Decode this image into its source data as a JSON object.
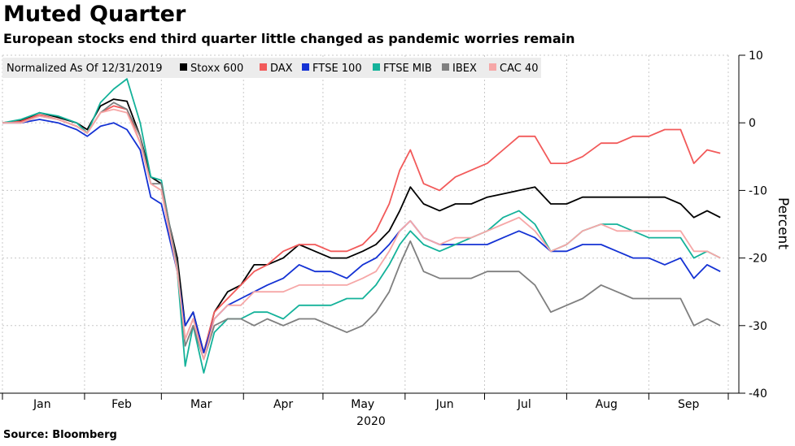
{
  "chart_data": {
    "type": "line",
    "title": "Muted Quarter",
    "subtitle": "European stocks end third quarter little changed as pandemic worries remain",
    "source": "Source: Bloomberg",
    "ylabel": "Percent",
    "xlabel": "2020",
    "legend_title": "Normalized As Of 12/31/2019",
    "ylim": [
      -40,
      10
    ],
    "yticks": [
      10,
      0,
      -10,
      -20,
      -30,
      -40
    ],
    "xlim": [
      0,
      274
    ],
    "month_ticks": [
      0,
      31,
      60,
      91,
      121,
      152,
      182,
      213,
      244,
      274
    ],
    "month_labels": [
      {
        "label": "Jan",
        "x": 15
      },
      {
        "label": "Feb",
        "x": 45
      },
      {
        "label": "Mar",
        "x": 75
      },
      {
        "label": "Apr",
        "x": 106
      },
      {
        "label": "May",
        "x": 136
      },
      {
        "label": "Jun",
        "x": 167
      },
      {
        "label": "Jul",
        "x": 197
      },
      {
        "label": "Aug",
        "x": 228
      },
      {
        "label": "Sep",
        "x": 259
      }
    ],
    "grid": true,
    "series": [
      {
        "name": "Stoxx 600",
        "color": "#000000",
        "points": [
          [
            0,
            0
          ],
          [
            7,
            0.3
          ],
          [
            14,
            1.5
          ],
          [
            21,
            0.8
          ],
          [
            28,
            0
          ],
          [
            32,
            -1
          ],
          [
            37,
            2.5
          ],
          [
            42,
            3.5
          ],
          [
            47,
            3.2
          ],
          [
            52,
            -2
          ],
          [
            56,
            -8
          ],
          [
            60,
            -9
          ],
          [
            63,
            -15
          ],
          [
            66,
            -20
          ],
          [
            69,
            -30
          ],
          [
            72,
            -28
          ],
          [
            76,
            -34
          ],
          [
            80,
            -28
          ],
          [
            85,
            -25
          ],
          [
            90,
            -24
          ],
          [
            95,
            -21
          ],
          [
            100,
            -21
          ],
          [
            106,
            -20
          ],
          [
            112,
            -18
          ],
          [
            118,
            -19
          ],
          [
            124,
            -20
          ],
          [
            130,
            -20
          ],
          [
            136,
            -19
          ],
          [
            141,
            -18
          ],
          [
            146,
            -16
          ],
          [
            150,
            -13
          ],
          [
            154,
            -9.5
          ],
          [
            159,
            -12
          ],
          [
            165,
            -13
          ],
          [
            171,
            -12
          ],
          [
            177,
            -12
          ],
          [
            183,
            -11
          ],
          [
            189,
            -10.5
          ],
          [
            195,
            -10
          ],
          [
            201,
            -9.5
          ],
          [
            207,
            -12
          ],
          [
            213,
            -12
          ],
          [
            219,
            -11
          ],
          [
            226,
            -11
          ],
          [
            232,
            -11
          ],
          [
            238,
            -11
          ],
          [
            244,
            -11
          ],
          [
            250,
            -11
          ],
          [
            256,
            -12
          ],
          [
            261,
            -14
          ],
          [
            266,
            -13
          ],
          [
            271,
            -14
          ]
        ]
      },
      {
        "name": "DAX",
        "color": "#f25a5a",
        "points": [
          [
            0,
            0
          ],
          [
            7,
            0.2
          ],
          [
            14,
            1.2
          ],
          [
            21,
            0.5
          ],
          [
            28,
            -0.5
          ],
          [
            32,
            -1.5
          ],
          [
            37,
            1.5
          ],
          [
            42,
            2.5
          ],
          [
            47,
            2
          ],
          [
            52,
            -3
          ],
          [
            56,
            -9
          ],
          [
            60,
            -10
          ],
          [
            63,
            -16
          ],
          [
            66,
            -22
          ],
          [
            69,
            -32
          ],
          [
            72,
            -29
          ],
          [
            76,
            -34
          ],
          [
            80,
            -28
          ],
          [
            85,
            -26
          ],
          [
            90,
            -24
          ],
          [
            95,
            -22
          ],
          [
            100,
            -21
          ],
          [
            106,
            -19
          ],
          [
            112,
            -18
          ],
          [
            118,
            -18
          ],
          [
            124,
            -19
          ],
          [
            130,
            -19
          ],
          [
            136,
            -18
          ],
          [
            141,
            -16
          ],
          [
            146,
            -12
          ],
          [
            150,
            -7
          ],
          [
            154,
            -4
          ],
          [
            159,
            -9
          ],
          [
            165,
            -10
          ],
          [
            171,
            -8
          ],
          [
            177,
            -7
          ],
          [
            183,
            -6
          ],
          [
            189,
            -4
          ],
          [
            195,
            -2
          ],
          [
            201,
            -2
          ],
          [
            207,
            -6
          ],
          [
            213,
            -6
          ],
          [
            219,
            -5
          ],
          [
            226,
            -3
          ],
          [
            232,
            -3
          ],
          [
            238,
            -2
          ],
          [
            244,
            -2
          ],
          [
            250,
            -1
          ],
          [
            256,
            -1
          ],
          [
            261,
            -6
          ],
          [
            266,
            -4
          ],
          [
            271,
            -4.5
          ]
        ]
      },
      {
        "name": "FTSE 100",
        "color": "#1432d4",
        "points": [
          [
            0,
            0
          ],
          [
            7,
            0
          ],
          [
            14,
            0.5
          ],
          [
            21,
            0
          ],
          [
            28,
            -1
          ],
          [
            32,
            -2
          ],
          [
            37,
            -0.5
          ],
          [
            42,
            0
          ],
          [
            47,
            -1
          ],
          [
            52,
            -4
          ],
          [
            56,
            -11
          ],
          [
            60,
            -12
          ],
          [
            63,
            -17
          ],
          [
            66,
            -22
          ],
          [
            69,
            -30
          ],
          [
            72,
            -28
          ],
          [
            76,
            -34
          ],
          [
            80,
            -29
          ],
          [
            85,
            -27
          ],
          [
            90,
            -26
          ],
          [
            95,
            -25
          ],
          [
            100,
            -24
          ],
          [
            106,
            -23
          ],
          [
            112,
            -21
          ],
          [
            118,
            -22
          ],
          [
            124,
            -22
          ],
          [
            130,
            -23
          ],
          [
            136,
            -21
          ],
          [
            141,
            -20
          ],
          [
            146,
            -18
          ],
          [
            150,
            -16
          ],
          [
            154,
            -14.5
          ],
          [
            159,
            -17
          ],
          [
            165,
            -18
          ],
          [
            171,
            -18
          ],
          [
            177,
            -18
          ],
          [
            183,
            -18
          ],
          [
            189,
            -17
          ],
          [
            195,
            -16
          ],
          [
            201,
            -17
          ],
          [
            207,
            -19
          ],
          [
            213,
            -19
          ],
          [
            219,
            -18
          ],
          [
            226,
            -18
          ],
          [
            232,
            -19
          ],
          [
            238,
            -20
          ],
          [
            244,
            -20
          ],
          [
            250,
            -21
          ],
          [
            256,
            -20
          ],
          [
            261,
            -23
          ],
          [
            266,
            -21
          ],
          [
            271,
            -22
          ]
        ]
      },
      {
        "name": "FTSE MIB",
        "color": "#14b29a",
        "points": [
          [
            0,
            0
          ],
          [
            7,
            0.5
          ],
          [
            14,
            1.5
          ],
          [
            21,
            1
          ],
          [
            28,
            0
          ],
          [
            32,
            -1.5
          ],
          [
            37,
            3
          ],
          [
            42,
            5
          ],
          [
            47,
            6.5
          ],
          [
            52,
            0
          ],
          [
            56,
            -8
          ],
          [
            60,
            -8.5
          ],
          [
            63,
            -15
          ],
          [
            66,
            -22
          ],
          [
            69,
            -36
          ],
          [
            72,
            -30
          ],
          [
            76,
            -37
          ],
          [
            80,
            -31
          ],
          [
            85,
            -29
          ],
          [
            90,
            -29
          ],
          [
            95,
            -28
          ],
          [
            100,
            -28
          ],
          [
            106,
            -29
          ],
          [
            112,
            -27
          ],
          [
            118,
            -27
          ],
          [
            124,
            -27
          ],
          [
            130,
            -26
          ],
          [
            136,
            -26
          ],
          [
            141,
            -24
          ],
          [
            146,
            -21
          ],
          [
            150,
            -18
          ],
          [
            154,
            -16
          ],
          [
            159,
            -18
          ],
          [
            165,
            -19
          ],
          [
            171,
            -18
          ],
          [
            177,
            -17
          ],
          [
            183,
            -16
          ],
          [
            189,
            -14
          ],
          [
            195,
            -13
          ],
          [
            201,
            -15
          ],
          [
            207,
            -19
          ],
          [
            213,
            -18
          ],
          [
            219,
            -16
          ],
          [
            226,
            -15
          ],
          [
            232,
            -15
          ],
          [
            238,
            -16
          ],
          [
            244,
            -17
          ],
          [
            250,
            -17
          ],
          [
            256,
            -17
          ],
          [
            261,
            -20
          ],
          [
            266,
            -19
          ],
          [
            271,
            -20
          ]
        ]
      },
      {
        "name": "IBEX",
        "color": "#7f7f7f",
        "points": [
          [
            0,
            0
          ],
          [
            7,
            0
          ],
          [
            14,
            1
          ],
          [
            21,
            0.5
          ],
          [
            28,
            -0.5
          ],
          [
            32,
            -1.5
          ],
          [
            37,
            1.5
          ],
          [
            42,
            3
          ],
          [
            47,
            2
          ],
          [
            52,
            -2
          ],
          [
            56,
            -9
          ],
          [
            60,
            -9
          ],
          [
            63,
            -15
          ],
          [
            66,
            -21
          ],
          [
            69,
            -33
          ],
          [
            72,
            -30
          ],
          [
            76,
            -35
          ],
          [
            80,
            -30
          ],
          [
            85,
            -29
          ],
          [
            90,
            -29
          ],
          [
            95,
            -30
          ],
          [
            100,
            -29
          ],
          [
            106,
            -30
          ],
          [
            112,
            -29
          ],
          [
            118,
            -29
          ],
          [
            124,
            -30
          ],
          [
            130,
            -31
          ],
          [
            136,
            -30
          ],
          [
            141,
            -28
          ],
          [
            146,
            -25
          ],
          [
            150,
            -21
          ],
          [
            154,
            -17.5
          ],
          [
            159,
            -22
          ],
          [
            165,
            -23
          ],
          [
            171,
            -23
          ],
          [
            177,
            -23
          ],
          [
            183,
            -22
          ],
          [
            189,
            -22
          ],
          [
            195,
            -22
          ],
          [
            201,
            -24
          ],
          [
            207,
            -28
          ],
          [
            213,
            -27
          ],
          [
            219,
            -26
          ],
          [
            226,
            -24
          ],
          [
            232,
            -25
          ],
          [
            238,
            -26
          ],
          [
            244,
            -26
          ],
          [
            250,
            -26
          ],
          [
            256,
            -26
          ],
          [
            261,
            -30
          ],
          [
            266,
            -29
          ],
          [
            271,
            -30
          ]
        ]
      },
      {
        "name": "CAC 40",
        "color": "#f6a7a7",
        "points": [
          [
            0,
            0
          ],
          [
            7,
            0
          ],
          [
            14,
            1
          ],
          [
            21,
            0.5
          ],
          [
            28,
            -0.5
          ],
          [
            32,
            -1.5
          ],
          [
            37,
            1.5
          ],
          [
            42,
            2
          ],
          [
            47,
            1.5
          ],
          [
            52,
            -3
          ],
          [
            56,
            -9
          ],
          [
            60,
            -10
          ],
          [
            63,
            -16
          ],
          [
            66,
            -22
          ],
          [
            69,
            -32
          ],
          [
            72,
            -29
          ],
          [
            76,
            -35
          ],
          [
            80,
            -29
          ],
          [
            85,
            -27
          ],
          [
            90,
            -27
          ],
          [
            95,
            -25
          ],
          [
            100,
            -25
          ],
          [
            106,
            -25
          ],
          [
            112,
            -24
          ],
          [
            118,
            -24
          ],
          [
            124,
            -24
          ],
          [
            130,
            -24
          ],
          [
            136,
            -23
          ],
          [
            141,
            -22
          ],
          [
            146,
            -19
          ],
          [
            150,
            -16
          ],
          [
            154,
            -14.5
          ],
          [
            159,
            -17
          ],
          [
            165,
            -18
          ],
          [
            171,
            -17
          ],
          [
            177,
            -17
          ],
          [
            183,
            -16
          ],
          [
            189,
            -15
          ],
          [
            195,
            -14
          ],
          [
            201,
            -16
          ],
          [
            207,
            -19
          ],
          [
            213,
            -18
          ],
          [
            219,
            -16
          ],
          [
            226,
            -15
          ],
          [
            232,
            -16
          ],
          [
            238,
            -16
          ],
          [
            244,
            -16
          ],
          [
            250,
            -16
          ],
          [
            256,
            -16
          ],
          [
            261,
            -19
          ],
          [
            266,
            -19
          ],
          [
            271,
            -20
          ]
        ]
      }
    ]
  }
}
